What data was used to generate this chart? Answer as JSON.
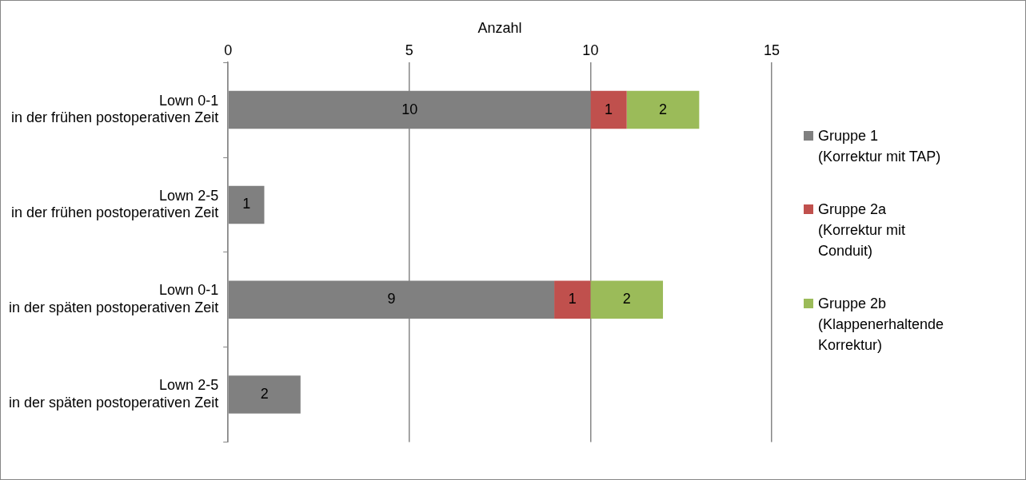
{
  "chart_data": {
    "type": "bar",
    "orientation": "horizontal",
    "stacked": true,
    "xlabel": "Anzahl",
    "categories": [
      "Lown 0-1\nin der frühen postoperativen Zeit",
      "Lown 2-5\nin der frühen postoperativen Zeit",
      "Lown 0-1\nin der späten postoperativen Zeit",
      "Lown 2-5\nin der späten postoperativen Zeit"
    ],
    "series": [
      {
        "name": "Gruppe 1\n(Korrektur mit TAP)",
        "color": "#808080",
        "values": [
          10,
          1,
          9,
          2
        ]
      },
      {
        "name": "Gruppe 2a\n(Korrektur mit\nConduit)",
        "color": "#c0504d",
        "values": [
          1,
          null,
          1,
          null
        ]
      },
      {
        "name": "Gruppe 2b\n(Klappenerhaltende\nKorrektur)",
        "color": "#9bbb59",
        "values": [
          2,
          null,
          2,
          null
        ]
      }
    ],
    "xlim": [
      0,
      15
    ],
    "xticks": [
      0,
      5,
      10,
      15
    ],
    "grid": "x",
    "legend": "right",
    "data_labels": true
  }
}
